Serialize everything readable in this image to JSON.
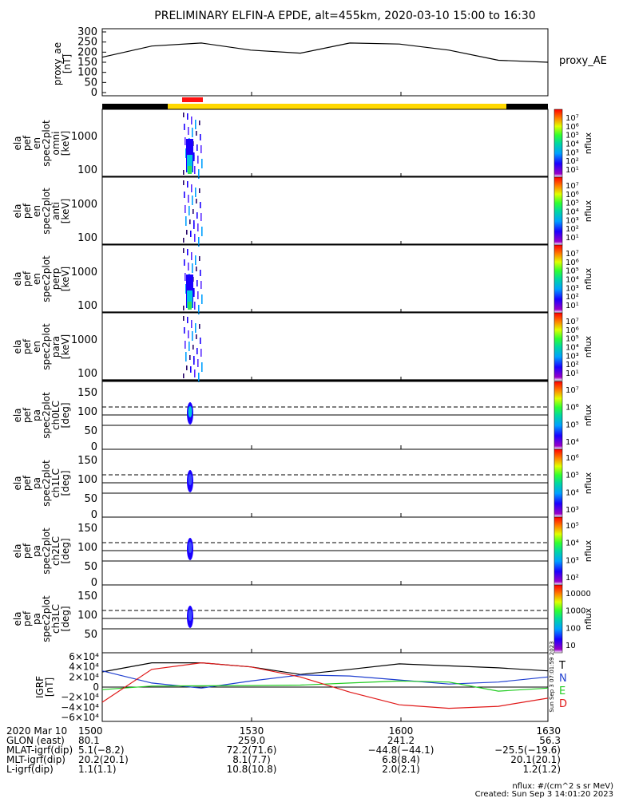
{
  "title": "PRELIMINARY ELFIN-A EPDE, alt=455km, 2020-03-10 15:00 to 16:30",
  "colors": {
    "ae": "#000000",
    "igrf_t": "#000000",
    "igrf_n": "#1f3fd0",
    "igrf_e": "#22cc22",
    "igrf_d": "#e01818",
    "bar_black": "#000000",
    "bar_yellow": "#ffd800",
    "bar_red": "#ff1010"
  },
  "ae_panel": {
    "ylabel": "proxy_ae\n[nT]",
    "right_label": "proxy_AE",
    "ticks": [
      "300",
      "250",
      "200",
      "150",
      "100",
      "50",
      "0"
    ]
  },
  "spec_panels": [
    {
      "ylabel": [
        "ela",
        "pef",
        "en",
        "spec2plot",
        "omni",
        "[keV]"
      ],
      "ticks": [
        "1000",
        "100"
      ],
      "cb_label": "nflux",
      "cb_ticks": [
        "10⁷",
        "10⁶",
        "10⁵",
        "10⁴",
        "10³",
        "10²",
        "10¹"
      ]
    },
    {
      "ylabel": [
        "ela",
        "pef",
        "en",
        "spec2plot",
        "anti",
        "[keV]"
      ],
      "ticks": [
        "1000",
        "100"
      ],
      "cb_label": "nflux",
      "cb_ticks": [
        "10⁷",
        "10⁶",
        "10⁵",
        "10⁴",
        "10³",
        "10²",
        "10¹"
      ]
    },
    {
      "ylabel": [
        "ela",
        "pef",
        "en",
        "spec2plot",
        "perp",
        "[keV]"
      ],
      "ticks": [
        "1000",
        "100"
      ],
      "cb_label": "nflux",
      "cb_ticks": [
        "10⁷",
        "10⁶",
        "10⁵",
        "10⁴",
        "10³",
        "10²",
        "10¹"
      ]
    },
    {
      "ylabel": [
        "ela",
        "pef",
        "en",
        "spec2plot",
        "para",
        "[keV]"
      ],
      "ticks": [
        "1000",
        "100"
      ],
      "cb_label": "nflux",
      "cb_ticks": [
        "10⁷",
        "10⁶",
        "10⁵",
        "10⁴",
        "10³",
        "10²",
        "10¹"
      ]
    }
  ],
  "pa_panels": [
    {
      "ylabel": [
        "ela",
        "pef",
        "pa",
        "spec2plot",
        "ch0LC",
        "[deg]"
      ],
      "ticks": [
        "150",
        "100",
        "50",
        "0"
      ],
      "cb_label": "nflux",
      "cb_ticks": [
        "10⁷",
        "10⁶",
        "10⁵",
        "10⁴"
      ]
    },
    {
      "ylabel": [
        "ela",
        "pef",
        "pa",
        "spec2plot",
        "ch1LC",
        "[deg]"
      ],
      "ticks": [
        "150",
        "100",
        "50",
        "0"
      ],
      "cb_label": "nflux",
      "cb_ticks": [
        "10⁶",
        "10⁵",
        "10⁴",
        "10³"
      ]
    },
    {
      "ylabel": [
        "ela",
        "pef",
        "pa",
        "spec2plot",
        "ch2LC",
        "[deg]"
      ],
      "ticks": [
        "150",
        "100",
        "50",
        "0"
      ],
      "cb_label": "nflux",
      "cb_ticks": [
        "10⁵",
        "10⁴",
        "10³",
        "10²"
      ]
    },
    {
      "ylabel": [
        "ela",
        "pef",
        "pa",
        "spec2plot",
        "ch3LC",
        "[deg]"
      ],
      "ticks": [
        "150",
        "100",
        "50"
      ],
      "cb_label": "nflux",
      "cb_ticks": [
        "10000",
        "1000",
        "100",
        "10"
      ]
    }
  ],
  "igrf_panel": {
    "ylabel": "IGRF\n[nT]",
    "ticks": [
      "6×10⁴",
      "4×10⁴",
      "2×10⁴",
      "0",
      "−2×10⁴",
      "−4×10⁴",
      "−6×10⁴"
    ],
    "legend": [
      "T",
      "N",
      "E",
      "D"
    ],
    "stamp": "Sun Sep  3 07:01:59 2023"
  },
  "x_ticks": [
    "1500",
    "1530",
    "1600",
    "1630"
  ],
  "footer": {
    "rows": [
      {
        "label": "2020 Mar 10",
        "values": [
          "1500",
          "1530",
          "1600",
          "1630"
        ]
      },
      {
        "label": "GLON (east)",
        "values": [
          "80.1",
          "259.0",
          "241.2",
          "56.3"
        ]
      },
      {
        "label": "MLAT-igrf(dip)",
        "values": [
          "5.1(−8.2)",
          "72.2(71.6)",
          "−44.8(−44.1)",
          "−25.5(−19.6)"
        ]
      },
      {
        "label": "MLT-igrf(dip)",
        "values": [
          "20.2(20.1)",
          "8.1(7.7)",
          "6.8(8.4)",
          "20.1(20.1)"
        ]
      },
      {
        "label": "L-igrf(dip)",
        "values": [
          "1.1(1.1)",
          "10.8(10.8)",
          "2.0(2.1)",
          "1.2(1.2)"
        ]
      }
    ],
    "units": "nflux: #/(cm^2 s sr MeV)",
    "created": "Created: Sun Sep  3 14:01:20 2023"
  },
  "chart_data": [
    {
      "type": "line",
      "x_unit": "UT (HHMM)",
      "x": [
        "1500",
        "1510",
        "1520",
        "1530",
        "1540",
        "1550",
        "1600",
        "1610",
        "1620",
        "1630"
      ],
      "series": [
        {
          "name": "proxy_AE",
          "values": [
            175,
            230,
            245,
            210,
            195,
            245,
            240,
            210,
            160,
            150
          ]
        }
      ],
      "ylim": [
        0,
        300
      ],
      "ylabel": "proxy_ae [nT]"
    },
    {
      "type": "heatmap",
      "note_panels": [
        "omni",
        "anti",
        "perp",
        "para",
        "ch0LC",
        "ch1LC",
        "ch2LC",
        "ch3LC"
      ],
      "active_interval": [
        "1508",
        "1510"
      ]
    },
    {
      "type": "line",
      "x": [
        "1500",
        "1510",
        "1520",
        "1530",
        "1540",
        "1550",
        "1600",
        "1610",
        "1620",
        "1630"
      ],
      "series": [
        {
          "name": "T",
          "values": [
            30000,
            48000,
            48000,
            40000,
            25000,
            35000,
            46000,
            42000,
            38000,
            32000
          ]
        },
        {
          "name": "N",
          "values": [
            32000,
            8000,
            -2000,
            12000,
            24000,
            22000,
            14000,
            6000,
            10000,
            20000
          ]
        },
        {
          "name": "E",
          "values": [
            -5000,
            2000,
            2500,
            3000,
            4000,
            8000,
            12000,
            10000,
            -8000,
            -2000
          ]
        },
        {
          "name": "D",
          "values": [
            -30000,
            35000,
            48000,
            40000,
            20000,
            -10000,
            -35000,
            -42000,
            -38000,
            -22000
          ]
        }
      ],
      "ylim": [
        -60000,
        60000
      ],
      "ylabel": "IGRF [nT]"
    }
  ]
}
